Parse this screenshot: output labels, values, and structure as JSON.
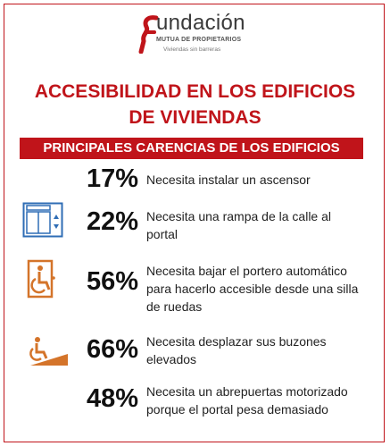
{
  "logo": {
    "name": "undación",
    "subtitle": "MUTUA DE PROPIETARIOS",
    "tagline": "Viviendas sin barreras"
  },
  "title": {
    "line1": "ACCESIBILIDAD EN LOS EDIFICIOS",
    "line2": "DE VIVIENDAS"
  },
  "banner": "PRINCIPALES CARENCIAS DE LOS EDIFICIOS",
  "items": [
    {
      "percent": "17%",
      "line1": "Necesita instalar un ascensor",
      "line2": "",
      "line3": "",
      "icon": ""
    },
    {
      "percent": "22%",
      "line1": "Necesita una rampa de la calle al",
      "line2": "portal",
      "line3": "",
      "icon": "elevator-icon"
    },
    {
      "percent": "56%",
      "line1": "Necesita  bajar el portero automático",
      "line2": "para hacerlo accesible desde una silla",
      "line3": "de ruedas",
      "icon": "wheelchair-door-icon"
    },
    {
      "percent": "66%",
      "line1": "Necesita desplazar sus buzones",
      "line2": "elevados",
      "line3": "",
      "icon": "wheelchair-ramp-icon"
    },
    {
      "percent": "48%",
      "line1": "Necesita un abrepuertas motorizado",
      "line2": "porque  el portal pesa demasiado",
      "line3": "",
      "icon": ""
    }
  ],
  "colors": {
    "brand_red": "#c0141a",
    "icon_blue": "#2f6db5",
    "icon_orange": "#d4742a"
  }
}
